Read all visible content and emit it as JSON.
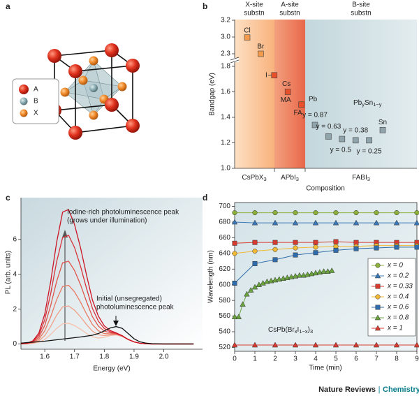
{
  "panel_labels": [
    "a",
    "b",
    "c",
    "d"
  ],
  "diagram": {
    "legend": [
      "A",
      "B",
      "X"
    ]
  },
  "chart_data": [
    {
      "type": "scatter",
      "xlabel": "Composition",
      "ylabel": "Bandgap (eV)",
      "y_segments": [
        {
          "ylim": [
            1.0,
            1.8
          ],
          "yticks": [
            {
              "value": 1,
              "label": "1.0"
            },
            1.2,
            1.4,
            1.6,
            1.8
          ]
        },
        {
          "ylim": [
            2.3,
            3.0
          ],
          "yticks": [
            2.3
          ]
        },
        {
          "ylim": [
            3.0,
            3.2
          ],
          "yticks": [
            {
              "value": 3,
              "label": "3.0"
            },
            3.2
          ]
        }
      ],
      "regions": [
        {
          "header": [
            "X-site",
            "substn"
          ],
          "label": [
            "CsPbX",
            "3"
          ]
        },
        {
          "header": [
            "A-site",
            "substn"
          ],
          "label": [
            "APbI",
            "3"
          ]
        },
        {
          "header": [
            "B-site",
            "substn"
          ],
          "label": [
            "FABI",
            "3"
          ]
        }
      ],
      "categories": [
        "Cl",
        "Br",
        "I",
        "MA",
        "FA",
        "y = 0.87",
        "y = 0.63",
        "y = 0.5",
        "y = 0.38",
        "y = 0.25",
        "Sn"
      ],
      "values": [
        2.98,
        2.3,
        1.73,
        1.6,
        1.5,
        1.34,
        1.25,
        1.23,
        1.22,
        1.22,
        1.3
      ],
      "colors": [
        "#f39a4c",
        "#f39a4c",
        "#e8502a",
        "#e8502a",
        "#e8502a",
        "#8fa4ab",
        "#8fa4ab",
        "#8fa4ab",
        "#8fa4ab",
        "#8fa4ab",
        "#8fa4ab"
      ],
      "annotations": [
        [
          "Cs"
        ],
        [
          "Pb"
        ],
        [
          "Pb",
          "y",
          "Sn",
          "1−y"
        ]
      ]
    },
    {
      "type": "line",
      "xlabel": "Energy (eV)",
      "ylabel": "PL (arb. units)",
      "xlim": [
        1.52,
        2.13
      ],
      "ylim": [
        -0.3,
        8.4
      ],
      "xticks": [
        1.6,
        1.7,
        1.8,
        1.9,
        {
          "value": 2,
          "label": "2.0"
        }
      ],
      "yticks": [
        0,
        2,
        4,
        6
      ],
      "x": [
        1.52,
        1.54,
        1.56,
        1.58,
        1.6,
        1.62,
        1.64,
        1.66,
        1.68,
        1.7,
        1.72,
        1.74,
        1.76,
        1.78,
        1.8,
        1.82,
        1.84,
        1.86,
        1.88,
        1.9,
        1.92,
        1.94,
        1.96,
        1.98,
        2.0,
        2.02,
        2.04,
        2.06,
        2.08,
        2.1
      ],
      "series": [
        {
          "color": "#f6c2ad",
          "values": [
            0,
            0.01,
            0.03,
            0.1,
            0.26,
            0.55,
            0.9,
            1.16,
            1.19,
            1.06,
            0.85,
            0.61,
            0.42,
            0.34,
            0.38,
            0.48,
            0.52,
            0.43,
            0.26,
            0.12,
            0.04,
            0.01,
            0,
            0,
            0,
            0,
            0,
            0,
            0,
            0
          ]
        },
        {
          "color": "#f1a088",
          "values": [
            0,
            0.01,
            0.05,
            0.18,
            0.48,
            1.01,
            1.65,
            2.13,
            2.18,
            1.94,
            1.56,
            1.12,
            0.74,
            0.53,
            0.48,
            0.52,
            0.54,
            0.44,
            0.26,
            0.12,
            0.04,
            0.01,
            0,
            0,
            0,
            0,
            0,
            0,
            0,
            0
          ]
        },
        {
          "color": "#e97a64",
          "values": [
            0,
            0.02,
            0.08,
            0.27,
            0.75,
            1.56,
            2.55,
            3.3,
            3.37,
            2.99,
            2.41,
            1.73,
            1.12,
            0.76,
            0.6,
            0.58,
            0.56,
            0.45,
            0.26,
            0.12,
            0.04,
            0.01,
            0,
            0,
            0,
            0,
            0,
            0,
            0,
            0
          ]
        },
        {
          "color": "#e0544a",
          "values": [
            0,
            0.02,
            0.11,
            0.38,
            1.06,
            2.21,
            3.6,
            4.66,
            4.75,
            4.22,
            3.41,
            2.45,
            1.57,
            1.03,
            0.74,
            0.64,
            0.59,
            0.46,
            0.26,
            0.12,
            0.04,
            0.01,
            0,
            0,
            0,
            0,
            0,
            0,
            0,
            0
          ]
        },
        {
          "color": "#d8323a",
          "values": [
            0.01,
            0.03,
            0.14,
            0.5,
            1.39,
            2.9,
            4.73,
            6.11,
            6.24,
            5.54,
            4.47,
            3.21,
            2.05,
            1.31,
            0.89,
            0.7,
            0.61,
            0.47,
            0.26,
            0.12,
            0.04,
            0.01,
            0,
            0,
            0,
            0,
            0,
            0,
            0,
            0
          ]
        },
        {
          "color": "#cc1424",
          "values": [
            0.01,
            0.04,
            0.18,
            0.62,
            1.72,
            3.59,
            5.85,
            7.57,
            7.72,
            6.86,
            5.54,
            3.98,
            2.53,
            1.6,
            1.04,
            0.77,
            0.64,
            0.48,
            0.26,
            0.12,
            0.04,
            0.01,
            0,
            0,
            0,
            0,
            0,
            0,
            0,
            0
          ]
        },
        {
          "color": "#111111",
          "values": [
            0.05,
            0.08,
            0.1,
            0.13,
            0.16,
            0.2,
            0.24,
            0.28,
            0.32,
            0.36,
            0.4,
            0.45,
            0.5,
            0.6,
            0.75,
            0.92,
            1.0,
            0.9,
            0.6,
            0.3,
            0.12,
            0.05,
            0.02,
            0.01,
            0,
            0,
            0,
            0,
            0,
            0
          ]
        }
      ],
      "annotations": [
        [
          "Iodine-rich photoluminescence peak",
          "(grows under illumination)"
        ],
        [
          "Initial (unsegregated)",
          "photoluminescence peak"
        ]
      ]
    },
    {
      "type": "line",
      "xlabel": "Time (min)",
      "ylabel": "Wavelength (nm)",
      "xlim": [
        0,
        9
      ],
      "ylim": [
        515,
        705
      ],
      "xticks": [
        0,
        1,
        2,
        3,
        4,
        5,
        6,
        7,
        8,
        9
      ],
      "yticks": [
        520,
        540,
        560,
        580,
        600,
        620,
        640,
        660,
        680,
        700
      ],
      "legend": "right",
      "x": [
        0,
        1,
        2,
        3,
        4,
        5,
        6,
        7,
        8,
        9
      ],
      "series": [
        {
          "name": "x = 0",
          "color": "#8db03c",
          "marker": "circle",
          "values": [
            692,
            692,
            692,
            692,
            692,
            692,
            692,
            692,
            692,
            692
          ]
        },
        {
          "name": "x = 0.2",
          "color": "#3b78b8",
          "marker": "triangle",
          "values": [
            680,
            679,
            679,
            679,
            679,
            679,
            679,
            679,
            679,
            679
          ]
        },
        {
          "name": "x = 0.33",
          "color": "#d93a30",
          "marker": "square",
          "values": [
            653,
            654,
            654,
            654,
            654,
            655,
            654,
            654,
            654,
            654
          ]
        },
        {
          "name": "x = 0.4",
          "color": "#f2b935",
          "marker": "circle",
          "values": [
            640,
            643,
            645,
            647,
            648,
            649,
            649,
            650,
            650,
            650
          ]
        },
        {
          "name": "x = 0.6",
          "color": "#2f6cab",
          "marker": "square",
          "values": [
            602,
            627,
            632,
            638,
            641,
            644,
            646,
            647,
            648,
            648
          ]
        },
        {
          "name": "x = 0.8",
          "color": "#6aa33e",
          "marker": "triangle",
          "x": [
            0,
            0.2,
            0.4,
            0.6,
            0.8,
            1,
            1.2,
            1.4,
            1.6,
            1.8,
            2,
            2.2,
            2.4,
            2.6,
            2.8,
            3,
            3.2,
            3.4,
            3.6,
            3.8,
            4,
            4.2,
            4.4,
            4.6,
            4.8
          ],
          "values": [
            559,
            559,
            575,
            588,
            593,
            597,
            600,
            602,
            604,
            605,
            606,
            607,
            608,
            609,
            610,
            611,
            612,
            612,
            613,
            614,
            615,
            616,
            617,
            617,
            618
          ]
        },
        {
          "name": "x = 1",
          "color": "#d93a30",
          "marker": "triangle",
          "values": [
            523,
            523,
            523,
            523,
            523,
            523,
            523,
            523,
            523,
            523
          ]
        }
      ],
      "annotations": [
        [
          "CsPb(Br",
          "x",
          "I",
          "1−x",
          ")",
          "3"
        ]
      ]
    }
  ],
  "footer": {
    "journal": "Nature Reviews",
    "separator": "|",
    "section": "Chemistry"
  }
}
